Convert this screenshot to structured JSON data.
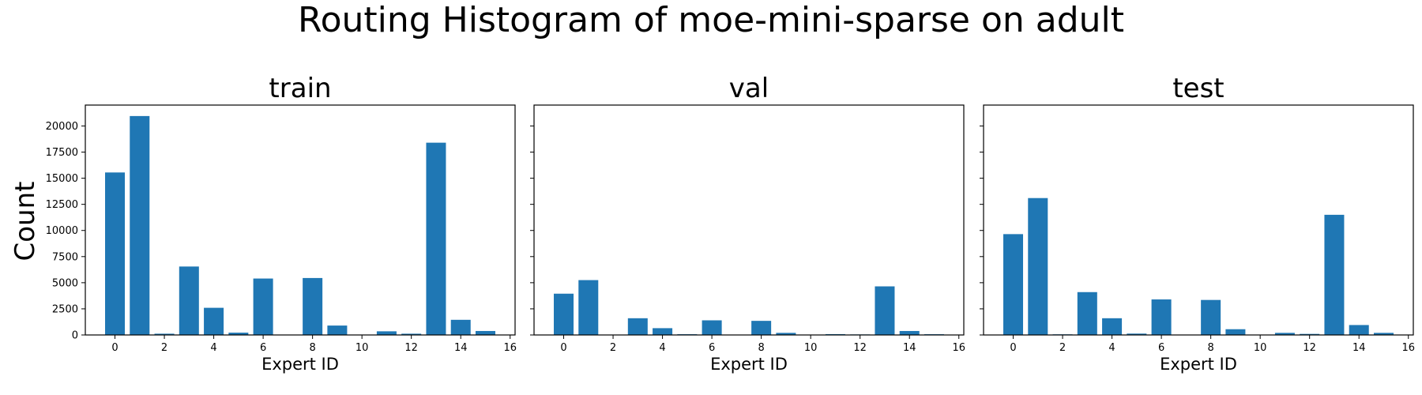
{
  "figure": {
    "title": "Routing Histogram of moe-mini-sparse on adult",
    "ylabel": "Count"
  },
  "colors": {
    "bar": "#1f77b4",
    "axis": "#000000",
    "background": "#ffffff"
  },
  "chart_data": [
    {
      "type": "bar",
      "title": "train",
      "xlabel": "Expert ID",
      "ylabel": "Count",
      "categories": [
        0,
        1,
        2,
        3,
        4,
        5,
        6,
        7,
        8,
        9,
        10,
        11,
        12,
        13,
        14,
        15
      ],
      "values": [
        15550,
        20950,
        120,
        6550,
        2600,
        220,
        5400,
        0,
        5450,
        900,
        0,
        350,
        120,
        18400,
        1450,
        380
      ],
      "xlim": [
        -1.2,
        16.2
      ],
      "ylim": [
        0,
        22000
      ],
      "xticks": [
        0,
        2,
        4,
        6,
        8,
        10,
        12,
        14,
        16
      ],
      "yticks": [
        0,
        2500,
        5000,
        7500,
        10000,
        12500,
        15000,
        17500,
        20000
      ],
      "show_ytick_labels": true,
      "grid": false
    },
    {
      "type": "bar",
      "title": "val",
      "xlabel": "Expert ID",
      "ylabel": "Count",
      "categories": [
        0,
        1,
        2,
        3,
        4,
        5,
        6,
        7,
        8,
        9,
        10,
        11,
        12,
        13,
        14,
        15
      ],
      "values": [
        3950,
        5250,
        30,
        1600,
        650,
        70,
        1400,
        0,
        1350,
        200,
        0,
        80,
        50,
        4650,
        380,
        70
      ],
      "xlim": [
        -1.2,
        16.2
      ],
      "ylim": [
        0,
        22000
      ],
      "xticks": [
        0,
        2,
        4,
        6,
        8,
        10,
        12,
        14,
        16
      ],
      "yticks": [
        0,
        2500,
        5000,
        7500,
        10000,
        12500,
        15000,
        17500,
        20000
      ],
      "show_ytick_labels": false,
      "grid": false
    },
    {
      "type": "bar",
      "title": "test",
      "xlabel": "Expert ID",
      "ylabel": "Count",
      "categories": [
        0,
        1,
        2,
        3,
        4,
        5,
        6,
        7,
        8,
        9,
        10,
        11,
        12,
        13,
        14,
        15
      ],
      "values": [
        9650,
        13100,
        60,
        4100,
        1600,
        130,
        3400,
        0,
        3350,
        550,
        0,
        200,
        100,
        11500,
        950,
        200
      ],
      "xlim": [
        -1.2,
        16.2
      ],
      "ylim": [
        0,
        22000
      ],
      "xticks": [
        0,
        2,
        4,
        6,
        8,
        10,
        12,
        14,
        16
      ],
      "yticks": [
        0,
        2500,
        5000,
        7500,
        10000,
        12500,
        15000,
        17500,
        20000
      ],
      "show_ytick_labels": false,
      "grid": false
    }
  ]
}
